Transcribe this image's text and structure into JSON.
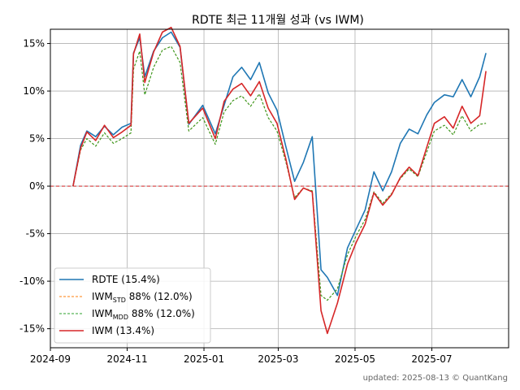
{
  "chart_data": {
    "type": "line",
    "title": "RDTE 최근 11개월 성과 (vs IWM)",
    "footer": "updated: 2025-08-13 © QuantKang",
    "xlim": [
      "2024-09-01",
      "2025-08-31"
    ],
    "ylim": [
      -17,
      16.5
    ],
    "x_ticks": [
      {
        "date": "2024-09-01",
        "label": "2024-09"
      },
      {
        "date": "2024-11-01",
        "label": "2024-11"
      },
      {
        "date": "2025-01-01",
        "label": "2025-01"
      },
      {
        "date": "2025-03-01",
        "label": "2025-03"
      },
      {
        "date": "2025-05-01",
        "label": "2025-05"
      },
      {
        "date": "2025-07-01",
        "label": "2025-07"
      }
    ],
    "y_ticks": [
      {
        "value": 15,
        "label": "15%"
      },
      {
        "value": 10,
        "label": "10%"
      },
      {
        "value": 5,
        "label": "5%"
      },
      {
        "value": 0,
        "label": "0%"
      },
      {
        "value": -5,
        "label": "-5%"
      },
      {
        "value": -10,
        "label": "-10%"
      },
      {
        "value": -15,
        "label": "-15%"
      }
    ],
    "grid": true,
    "legend_position": "lower-left",
    "reference_line": {
      "value": 0,
      "color": "#d62728",
      "style": "dashed"
    },
    "series": [
      {
        "name": "RDTE (15.4%)",
        "legend_main": "RDTE (15.4%)",
        "legend_sub": "",
        "legend_rest": "",
        "color": "#1f77b4",
        "style": "solid",
        "points": [
          [
            "2024-09-19",
            0.0
          ],
          [
            "2024-09-25",
            4.3
          ],
          [
            "2024-09-30",
            5.8
          ],
          [
            "2024-10-07",
            5.2
          ],
          [
            "2024-10-14",
            6.3
          ],
          [
            "2024-10-21",
            5.4
          ],
          [
            "2024-10-28",
            6.2
          ],
          [
            "2024-11-04",
            6.6
          ],
          [
            "2024-11-06",
            14.0
          ],
          [
            "2024-11-11",
            15.6
          ],
          [
            "2024-11-15",
            11.5
          ],
          [
            "2024-11-22",
            14.2
          ],
          [
            "2024-11-29",
            15.6
          ],
          [
            "2024-12-06",
            16.2
          ],
          [
            "2024-12-13",
            14.6
          ],
          [
            "2024-12-20",
            6.5
          ],
          [
            "2024-12-31",
            8.5
          ],
          [
            "2025-01-10",
            5.5
          ],
          [
            "2025-01-17",
            8.5
          ],
          [
            "2025-01-24",
            11.5
          ],
          [
            "2025-01-31",
            12.5
          ],
          [
            "2025-02-07",
            11.2
          ],
          [
            "2025-02-14",
            13.0
          ],
          [
            "2025-02-21",
            9.8
          ],
          [
            "2025-02-28",
            8.0
          ],
          [
            "2025-03-07",
            4.2
          ],
          [
            "2025-03-14",
            0.5
          ],
          [
            "2025-03-21",
            2.5
          ],
          [
            "2025-03-28",
            5.2
          ],
          [
            "2025-04-04",
            -8.8
          ],
          [
            "2025-04-09",
            -9.6
          ],
          [
            "2025-04-17",
            -11.5
          ],
          [
            "2025-04-25",
            -6.5
          ],
          [
            "2025-05-02",
            -4.5
          ],
          [
            "2025-05-09",
            -2.5
          ],
          [
            "2025-05-16",
            1.5
          ],
          [
            "2025-05-23",
            -0.5
          ],
          [
            "2025-05-30",
            1.5
          ],
          [
            "2025-06-06",
            4.5
          ],
          [
            "2025-06-13",
            6.0
          ],
          [
            "2025-06-20",
            5.5
          ],
          [
            "2025-06-27",
            7.5
          ],
          [
            "2025-07-03",
            8.8
          ],
          [
            "2025-07-11",
            9.6
          ],
          [
            "2025-07-18",
            9.4
          ],
          [
            "2025-07-25",
            11.2
          ],
          [
            "2025-08-01",
            9.4
          ],
          [
            "2025-08-08",
            11.5
          ],
          [
            "2025-08-13",
            14.0
          ]
        ]
      },
      {
        "name": "IWMSTD 88% (12.0%)",
        "legend_main": "IWM",
        "legend_sub": "STD",
        "legend_rest": " 88% (12.0%)",
        "color": "#ff7f0e",
        "style": "dashed",
        "points": [
          [
            "2024-09-19",
            0.0
          ],
          [
            "2024-09-25",
            3.8
          ],
          [
            "2024-09-30",
            5.0
          ],
          [
            "2024-10-07",
            4.2
          ],
          [
            "2024-10-14",
            5.6
          ],
          [
            "2024-10-21",
            4.5
          ],
          [
            "2024-10-28",
            5.0
          ],
          [
            "2024-11-04",
            5.6
          ],
          [
            "2024-11-06",
            12.3
          ],
          [
            "2024-11-11",
            14.2
          ],
          [
            "2024-11-15",
            9.6
          ],
          [
            "2024-11-22",
            12.5
          ],
          [
            "2024-11-29",
            14.3
          ],
          [
            "2024-12-06",
            14.7
          ],
          [
            "2024-12-13",
            13.0
          ],
          [
            "2024-12-20",
            5.8
          ],
          [
            "2024-12-31",
            7.2
          ],
          [
            "2025-01-10",
            4.4
          ],
          [
            "2025-01-17",
            7.8
          ],
          [
            "2025-01-24",
            9.0
          ],
          [
            "2025-01-31",
            9.5
          ],
          [
            "2025-02-07",
            8.4
          ],
          [
            "2025-02-14",
            9.7
          ],
          [
            "2025-02-21",
            7.2
          ],
          [
            "2025-02-28",
            5.8
          ],
          [
            "2025-03-07",
            2.6
          ],
          [
            "2025-03-14",
            -1.2
          ],
          [
            "2025-03-21",
            -0.2
          ],
          [
            "2025-03-28",
            -0.5
          ],
          [
            "2025-04-04",
            -11.5
          ],
          [
            "2025-04-09",
            -12.0
          ],
          [
            "2025-04-17",
            -10.8
          ],
          [
            "2025-04-25",
            -7.2
          ],
          [
            "2025-05-02",
            -5.2
          ],
          [
            "2025-05-09",
            -3.5
          ],
          [
            "2025-05-16",
            -0.6
          ],
          [
            "2025-05-23",
            -1.8
          ],
          [
            "2025-05-30",
            -0.8
          ],
          [
            "2025-06-06",
            0.8
          ],
          [
            "2025-06-13",
            1.8
          ],
          [
            "2025-06-20",
            1.0
          ],
          [
            "2025-06-27",
            3.6
          ],
          [
            "2025-07-03",
            5.8
          ],
          [
            "2025-07-11",
            6.4
          ],
          [
            "2025-07-18",
            5.4
          ],
          [
            "2025-07-25",
            7.4
          ],
          [
            "2025-08-01",
            5.8
          ],
          [
            "2025-08-08",
            6.5
          ],
          [
            "2025-08-13",
            6.6
          ]
        ]
      },
      {
        "name": "IWMMDD 88% (12.0%)",
        "legend_main": "IWM",
        "legend_sub": "MDD",
        "legend_rest": " 88% (12.0%)",
        "color": "#2ca02c",
        "style": "dashed",
        "points": [
          [
            "2024-09-19",
            0.0
          ],
          [
            "2024-09-25",
            3.8
          ],
          [
            "2024-09-30",
            5.0
          ],
          [
            "2024-10-07",
            4.2
          ],
          [
            "2024-10-14",
            5.6
          ],
          [
            "2024-10-21",
            4.5
          ],
          [
            "2024-10-28",
            5.0
          ],
          [
            "2024-11-04",
            5.6
          ],
          [
            "2024-11-06",
            12.3
          ],
          [
            "2024-11-11",
            14.2
          ],
          [
            "2024-11-15",
            9.6
          ],
          [
            "2024-11-22",
            12.5
          ],
          [
            "2024-11-29",
            14.3
          ],
          [
            "2024-12-06",
            14.7
          ],
          [
            "2024-12-13",
            13.0
          ],
          [
            "2024-12-20",
            5.8
          ],
          [
            "2024-12-31",
            7.2
          ],
          [
            "2025-01-10",
            4.4
          ],
          [
            "2025-01-17",
            7.8
          ],
          [
            "2025-01-24",
            9.0
          ],
          [
            "2025-01-31",
            9.5
          ],
          [
            "2025-02-07",
            8.4
          ],
          [
            "2025-02-14",
            9.7
          ],
          [
            "2025-02-21",
            7.2
          ],
          [
            "2025-02-28",
            5.8
          ],
          [
            "2025-03-07",
            2.6
          ],
          [
            "2025-03-14",
            -1.2
          ],
          [
            "2025-03-21",
            -0.2
          ],
          [
            "2025-03-28",
            -0.5
          ],
          [
            "2025-04-04",
            -11.5
          ],
          [
            "2025-04-09",
            -12.0
          ],
          [
            "2025-04-17",
            -10.8
          ],
          [
            "2025-04-25",
            -7.2
          ],
          [
            "2025-05-02",
            -5.2
          ],
          [
            "2025-05-09",
            -3.5
          ],
          [
            "2025-05-16",
            -0.6
          ],
          [
            "2025-05-23",
            -1.8
          ],
          [
            "2025-05-30",
            -0.8
          ],
          [
            "2025-06-06",
            0.8
          ],
          [
            "2025-06-13",
            1.8
          ],
          [
            "2025-06-20",
            1.0
          ],
          [
            "2025-06-27",
            3.6
          ],
          [
            "2025-07-03",
            5.8
          ],
          [
            "2025-07-11",
            6.4
          ],
          [
            "2025-07-18",
            5.4
          ],
          [
            "2025-07-25",
            7.4
          ],
          [
            "2025-08-01",
            5.8
          ],
          [
            "2025-08-08",
            6.5
          ],
          [
            "2025-08-13",
            6.6
          ]
        ]
      },
      {
        "name": "IWM (13.4%)",
        "legend_main": "IWM (13.4%)",
        "legend_sub": "",
        "legend_rest": "",
        "color": "#d62728",
        "style": "solid",
        "points": [
          [
            "2024-09-19",
            0.0
          ],
          [
            "2024-09-25",
            4.0
          ],
          [
            "2024-09-30",
            5.7
          ],
          [
            "2024-10-07",
            4.8
          ],
          [
            "2024-10-14",
            6.4
          ],
          [
            "2024-10-21",
            5.1
          ],
          [
            "2024-10-28",
            5.7
          ],
          [
            "2024-11-04",
            6.4
          ],
          [
            "2024-11-06",
            13.9
          ],
          [
            "2024-11-11",
            16.0
          ],
          [
            "2024-11-15",
            10.9
          ],
          [
            "2024-11-22",
            14.1
          ],
          [
            "2024-11-29",
            16.2
          ],
          [
            "2024-12-06",
            16.7
          ],
          [
            "2024-12-13",
            14.7
          ],
          [
            "2024-12-20",
            6.6
          ],
          [
            "2024-12-31",
            8.2
          ],
          [
            "2025-01-10",
            5.0
          ],
          [
            "2025-01-17",
            8.9
          ],
          [
            "2025-01-24",
            10.2
          ],
          [
            "2025-01-31",
            10.8
          ],
          [
            "2025-02-07",
            9.5
          ],
          [
            "2025-02-14",
            11.0
          ],
          [
            "2025-02-21",
            8.2
          ],
          [
            "2025-02-28",
            6.6
          ],
          [
            "2025-03-07",
            2.9
          ],
          [
            "2025-03-14",
            -1.4
          ],
          [
            "2025-03-21",
            -0.2
          ],
          [
            "2025-03-28",
            -0.6
          ],
          [
            "2025-04-04",
            -13.1
          ],
          [
            "2025-04-09",
            -15.5
          ],
          [
            "2025-04-17",
            -12.3
          ],
          [
            "2025-04-25",
            -8.2
          ],
          [
            "2025-05-02",
            -5.9
          ],
          [
            "2025-05-09",
            -4.0
          ],
          [
            "2025-05-16",
            -0.7
          ],
          [
            "2025-05-23",
            -2.0
          ],
          [
            "2025-05-30",
            -0.9
          ],
          [
            "2025-06-06",
            0.9
          ],
          [
            "2025-06-13",
            2.0
          ],
          [
            "2025-06-20",
            1.1
          ],
          [
            "2025-06-27",
            4.1
          ],
          [
            "2025-07-03",
            6.6
          ],
          [
            "2025-07-11",
            7.3
          ],
          [
            "2025-07-18",
            6.1
          ],
          [
            "2025-07-25",
            8.4
          ],
          [
            "2025-08-01",
            6.6
          ],
          [
            "2025-08-08",
            7.4
          ],
          [
            "2025-08-13",
            12.1
          ]
        ]
      }
    ]
  }
}
